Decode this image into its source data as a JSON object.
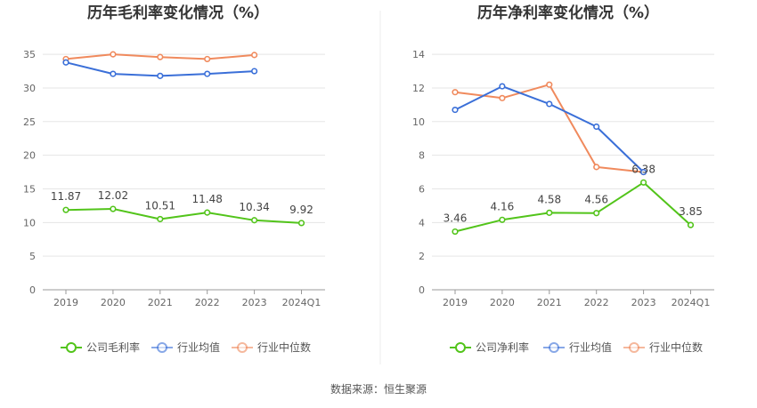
{
  "source": "数据来源：恒生聚源",
  "colors": {
    "company": "#52c41a",
    "avg": "#3a6fd8",
    "median": "#f08a5d",
    "grid": "#e5e5e5",
    "axis": "#999999"
  },
  "chart_data": [
    {
      "type": "line",
      "title": "历年毛利率变化情况（%）",
      "categories": [
        "2019",
        "2020",
        "2021",
        "2022",
        "2023",
        "2024Q1"
      ],
      "yticks": [
        0,
        5,
        10,
        15,
        20,
        25,
        30,
        35
      ],
      "ylim": [
        0,
        37
      ],
      "grid": true,
      "legend": "bottom",
      "series": [
        {
          "key": "company",
          "name": "公司毛利率",
          "values": [
            11.87,
            12.02,
            10.51,
            11.48,
            10.34,
            9.92
          ],
          "labels": [
            "11.87",
            "12.02",
            "10.51",
            "11.48",
            "10.34",
            "9.92"
          ]
        },
        {
          "key": "avg",
          "name": "行业均值",
          "values": [
            33.8,
            32.1,
            31.8,
            32.1,
            32.5,
            null
          ]
        },
        {
          "key": "median",
          "name": "行业中位数",
          "values": [
            34.3,
            35.0,
            34.6,
            34.3,
            34.9,
            null
          ]
        }
      ]
    },
    {
      "type": "line",
      "title": "历年净利率变化情况（%）",
      "categories": [
        "2019",
        "2020",
        "2021",
        "2022",
        "2023",
        "2024Q1"
      ],
      "yticks": [
        0,
        2,
        4,
        6,
        8,
        10,
        12,
        14
      ],
      "ylim": [
        0,
        14.8
      ],
      "grid": true,
      "legend": "bottom",
      "series": [
        {
          "key": "company",
          "name": "公司净利率",
          "values": [
            3.46,
            4.16,
            4.58,
            4.56,
            6.38,
            3.85
          ],
          "labels": [
            "3.46",
            "4.16",
            "4.58",
            "4.56",
            "6.38",
            "3.85"
          ]
        },
        {
          "key": "avg",
          "name": "行业均值",
          "values": [
            10.7,
            12.1,
            11.05,
            9.7,
            7.0,
            null
          ]
        },
        {
          "key": "median",
          "name": "行业中位数",
          "values": [
            11.75,
            11.4,
            12.2,
            7.3,
            7.0,
            null
          ]
        }
      ]
    }
  ]
}
